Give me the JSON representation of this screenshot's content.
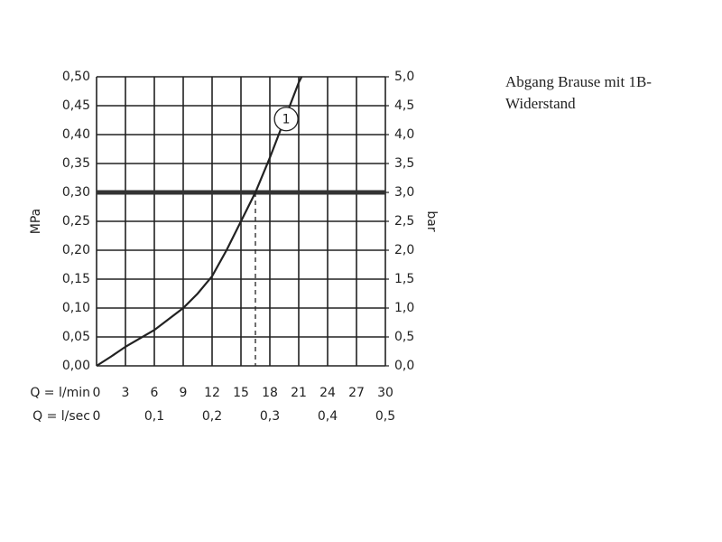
{
  "chart_data": {
    "type": "line",
    "title_lines": [
      "Abgang Brause mit 1B-",
      "Widerstand"
    ],
    "y_label": "MPa",
    "y2_label": "bar",
    "x_label": "Q = l/min",
    "x2_label": "Q = l/sec",
    "xlim": [
      0,
      30
    ],
    "xticks": [
      0,
      3,
      6,
      9,
      12,
      15,
      18,
      21,
      24,
      27,
      30
    ],
    "x2lim": [
      0,
      0.5
    ],
    "x2ticks": [
      0,
      {
        "value": 0.1,
        "label": "0,1"
      },
      {
        "value": 0.2,
        "label": "0,2"
      },
      {
        "value": 0.3,
        "label": "0,3"
      },
      {
        "value": 0.4,
        "label": "0,4"
      },
      {
        "value": 0.5,
        "label": "0,5"
      }
    ],
    "ylim": [
      0,
      0.5
    ],
    "yticks": [
      {
        "value": 0,
        "label": "0,00"
      },
      {
        "value": 0.05,
        "label": "0,05"
      },
      {
        "value": 0.1,
        "label": "0,10"
      },
      {
        "value": 0.15,
        "label": "0,15"
      },
      {
        "value": 0.2,
        "label": "0,20"
      },
      {
        "value": 0.25,
        "label": "0,25"
      },
      {
        "value": 0.3,
        "label": "0,30"
      },
      {
        "value": 0.35,
        "label": "0,35"
      },
      {
        "value": 0.4,
        "label": "0,40"
      },
      {
        "value": 0.45,
        "label": "0,45"
      },
      {
        "value": 0.5,
        "label": "0,50"
      }
    ],
    "y2lim": [
      0,
      5
    ],
    "y2ticks": [
      {
        "value": 0,
        "label": "0,0"
      },
      {
        "value": 0.5,
        "label": "0,5"
      },
      {
        "value": 1,
        "label": "1,0"
      },
      {
        "value": 1.5,
        "label": "1,5"
      },
      {
        "value": 2,
        "label": "2,0"
      },
      {
        "value": 2.5,
        "label": "2,5"
      },
      {
        "value": 3,
        "label": "3,0"
      },
      {
        "value": 3.5,
        "label": "3,5"
      },
      {
        "value": 4,
        "label": "4,0"
      },
      {
        "value": 4.5,
        "label": "4,5"
      },
      {
        "value": 5,
        "label": "5,0"
      }
    ],
    "grid": true,
    "series": [
      {
        "color": "#222222",
        "x": [
          0,
          1.5,
          3,
          6,
          9,
          10.5,
          12,
          13.5,
          15,
          16.5,
          18,
          19.5,
          21,
          21.3
        ],
        "values": [
          0,
          0.016,
          0.033,
          0.062,
          0.1,
          0.125,
          0.155,
          0.2,
          0.25,
          0.3,
          0.36,
          0.425,
          0.49,
          0.5
        ]
      }
    ],
    "hline": 0.3,
    "vline": 16.5,
    "annotation": {
      "text": "1",
      "x": 19.7,
      "y": 0.427
    }
  }
}
